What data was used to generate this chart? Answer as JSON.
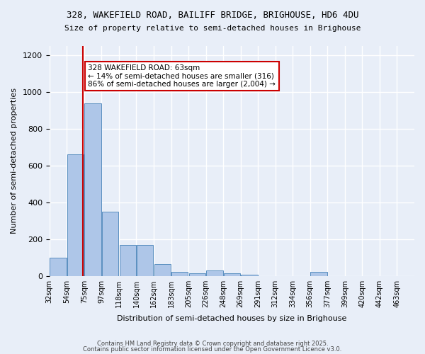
{
  "title": "328, WAKEFIELD ROAD, BAILIFF BRIDGE, BRIGHOUSE, HD6 4DU",
  "subtitle": "Size of property relative to semi-detached houses in Brighouse",
  "xlabel": "Distribution of semi-detached houses by size in Brighouse",
  "ylabel": "Number of semi-detached properties",
  "bins": [
    "32sqm",
    "54sqm",
    "75sqm",
    "97sqm",
    "118sqm",
    "140sqm",
    "162sqm",
    "183sqm",
    "205sqm",
    "226sqm",
    "248sqm",
    "269sqm",
    "291sqm",
    "312sqm",
    "334sqm",
    "356sqm",
    "377sqm",
    "399sqm",
    "420sqm",
    "442sqm",
    "463sqm"
  ],
  "bar_heights": [
    97,
    660,
    940,
    350,
    170,
    170,
    65,
    20,
    13,
    30,
    13,
    5,
    0,
    0,
    0,
    20,
    0,
    0,
    0,
    0,
    0
  ],
  "bar_color": "#aec6e8",
  "bar_edge_color": "#5a8fc0",
  "background_color": "#e8eef8",
  "grid_color": "#ffffff",
  "annotation_text": "328 WAKEFIELD ROAD: 63sqm\n← 14% of semi-detached houses are smaller (316)\n86% of semi-detached houses are larger (2,004) →",
  "annotation_box_color": "#ffffff",
  "annotation_box_edge_color": "#cc0000",
  "vline_x": 63,
  "vline_color": "#cc0000",
  "ylim": [
    0,
    1250
  ],
  "yticks": [
    0,
    200,
    400,
    600,
    800,
    1000,
    1200
  ],
  "footer_line1": "Contains HM Land Registry data © Crown copyright and database right 2025.",
  "footer_line2": "Contains public sector information licensed under the Open Government Licence v3.0."
}
